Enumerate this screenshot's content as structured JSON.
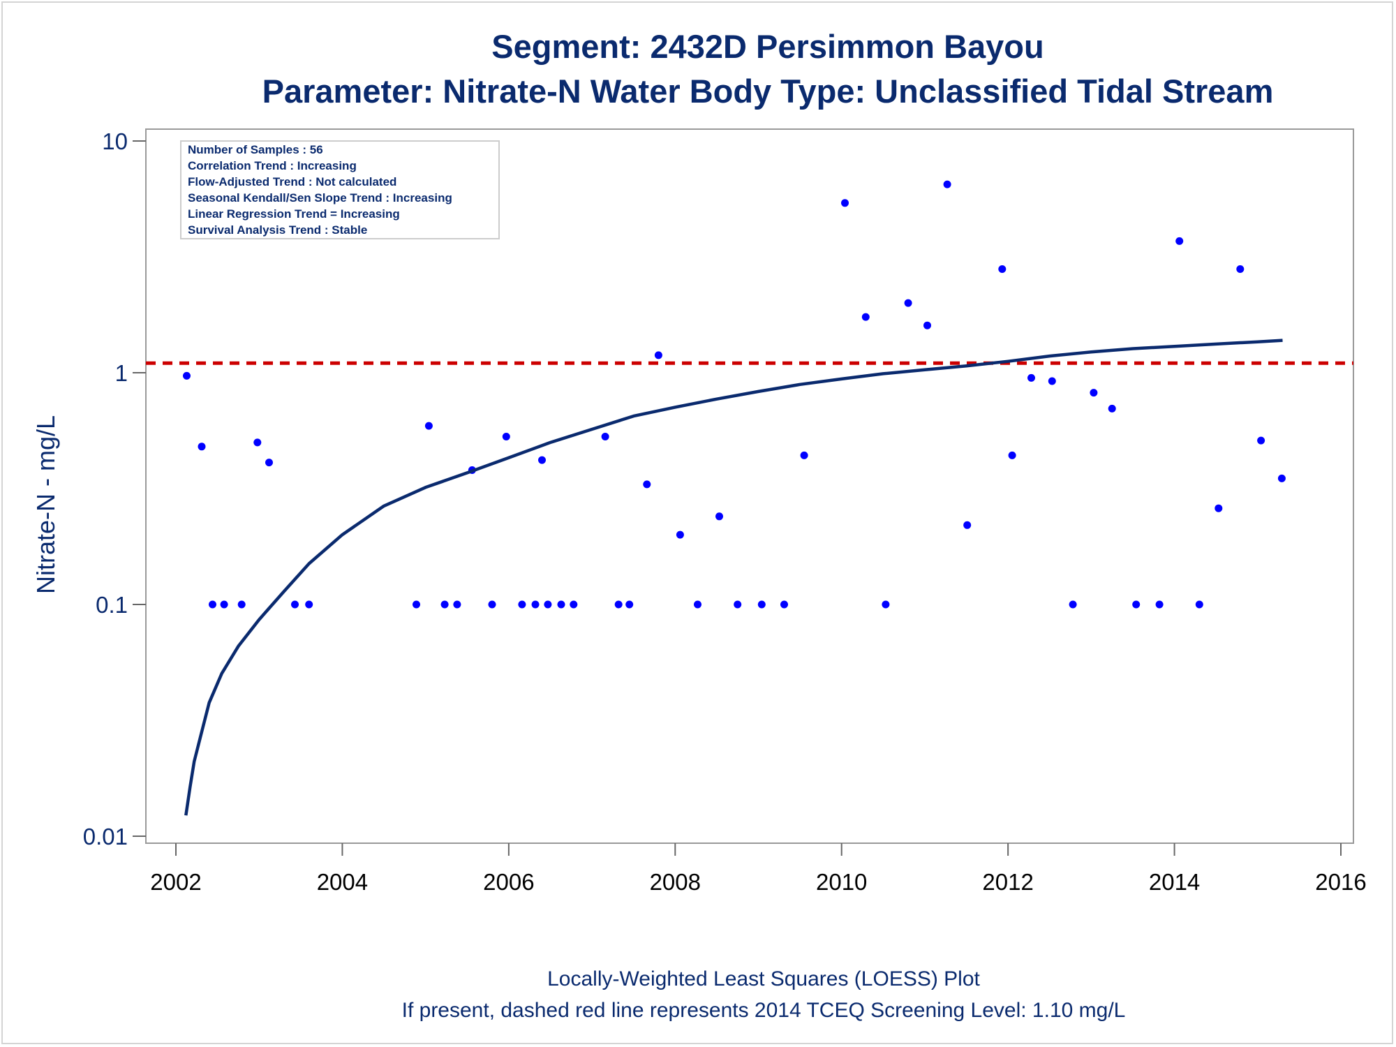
{
  "chart_data": {
    "type": "scatter",
    "title": "Segment: 2432D  Persimmon Bayou",
    "subtitle": "Parameter: Nitrate-N   Water Body Type: Unclassified Tidal Stream",
    "xlabel": "",
    "ylabel": "Nitrate-N - mg/L",
    "y_scale": "log",
    "xlim": [
      2002,
      2016
    ],
    "ylim": [
      0.01,
      10
    ],
    "x_ticks": [
      "2002",
      "2004",
      "2006",
      "2008",
      "2010",
      "2012",
      "2014",
      "2016"
    ],
    "y_ticks": [
      "0.01",
      "0.1",
      "1",
      "10"
    ],
    "grid": false,
    "legend_box": {
      "position": "top-left",
      "lines": [
        "Number of Samples : 56",
        "Correlation Trend : Increasing",
        "Flow-Adjusted Trend : Not calculated",
        "Seasonal Kendall/Sen Slope Trend : Increasing",
        "Linear Regression Trend = Increasing",
        "Survival Analysis Trend : Stable"
      ]
    },
    "footnotes": [
      "Locally-Weighted Least Squares (LOESS) Plot",
      "If present, dashed red line represents 2014 TCEQ Screening Level: 1.10 mg/L"
    ],
    "screening_level": {
      "value": 1.1,
      "color": "#cc0000",
      "style": "dashed"
    },
    "series": [
      {
        "type": "scatter",
        "color": "#0000ff",
        "points": [
          [
            2002.13,
            0.97
          ],
          [
            2002.31,
            0.48
          ],
          [
            2002.44,
            0.1
          ],
          [
            2002.58,
            0.1
          ],
          [
            2002.79,
            0.1
          ],
          [
            2002.98,
            0.5
          ],
          [
            2003.12,
            0.41
          ],
          [
            2003.43,
            0.1
          ],
          [
            2003.6,
            0.1
          ],
          [
            2004.89,
            0.1
          ],
          [
            2005.04,
            0.59
          ],
          [
            2005.23,
            0.1
          ],
          [
            2005.38,
            0.1
          ],
          [
            2005.56,
            0.38
          ],
          [
            2005.8,
            0.1
          ],
          [
            2005.97,
            0.53
          ],
          [
            2006.16,
            0.1
          ],
          [
            2006.32,
            0.1
          ],
          [
            2006.4,
            0.42
          ],
          [
            2006.47,
            0.1
          ],
          [
            2006.63,
            0.1
          ],
          [
            2006.78,
            0.1
          ],
          [
            2007.16,
            0.53
          ],
          [
            2007.32,
            0.1
          ],
          [
            2007.45,
            0.1
          ],
          [
            2007.66,
            0.33
          ],
          [
            2007.8,
            1.19
          ],
          [
            2008.06,
            0.2
          ],
          [
            2008.27,
            0.1
          ],
          [
            2008.53,
            0.24
          ],
          [
            2008.75,
            0.1
          ],
          [
            2009.04,
            0.1
          ],
          [
            2009.31,
            0.1
          ],
          [
            2009.55,
            0.44
          ],
          [
            2010.04,
            5.4
          ],
          [
            2010.29,
            1.74
          ],
          [
            2010.53,
            0.1
          ],
          [
            2010.8,
            2.0
          ],
          [
            2011.03,
            1.6
          ],
          [
            2011.27,
            6.5
          ],
          [
            2011.51,
            0.22
          ],
          [
            2011.93,
            2.8
          ],
          [
            2012.05,
            0.44
          ],
          [
            2012.28,
            0.95
          ],
          [
            2012.53,
            0.92
          ],
          [
            2012.78,
            0.1
          ],
          [
            2013.03,
            0.82
          ],
          [
            2013.25,
            0.7
          ],
          [
            2013.54,
            0.1
          ],
          [
            2013.82,
            0.1
          ],
          [
            2014.06,
            3.7
          ],
          [
            2014.3,
            0.1
          ],
          [
            2014.53,
            0.26
          ],
          [
            2014.79,
            2.8
          ],
          [
            2015.04,
            0.51
          ],
          [
            2015.29,
            0.35
          ]
        ]
      },
      {
        "type": "line",
        "color": "#0a2a6e",
        "points": [
          [
            2002.12,
            0.0123
          ],
          [
            2002.17,
            0.0163
          ],
          [
            2002.22,
            0.021
          ],
          [
            2002.3,
            0.0273
          ],
          [
            2002.4,
            0.0377
          ],
          [
            2002.55,
            0.0503
          ],
          [
            2002.75,
            0.066
          ],
          [
            2003.0,
            0.086
          ],
          [
            2003.3,
            0.114
          ],
          [
            2003.6,
            0.15
          ],
          [
            2004.0,
            0.2
          ],
          [
            2004.5,
            0.266
          ],
          [
            2005.0,
            0.32
          ],
          [
            2005.5,
            0.37
          ],
          [
            2006.0,
            0.43
          ],
          [
            2006.5,
            0.5
          ],
          [
            2007.0,
            0.57
          ],
          [
            2007.5,
            0.65
          ],
          [
            2008.0,
            0.71
          ],
          [
            2008.5,
            0.77
          ],
          [
            2009.0,
            0.83
          ],
          [
            2009.5,
            0.89
          ],
          [
            2010.0,
            0.94
          ],
          [
            2010.5,
            0.99
          ],
          [
            2011.0,
            1.03
          ],
          [
            2011.5,
            1.07
          ],
          [
            2012.0,
            1.12
          ],
          [
            2012.5,
            1.18
          ],
          [
            2013.0,
            1.23
          ],
          [
            2013.5,
            1.27
          ],
          [
            2014.0,
            1.3
          ],
          [
            2014.5,
            1.33
          ],
          [
            2015.0,
            1.36
          ],
          [
            2015.3,
            1.38
          ]
        ]
      }
    ]
  }
}
